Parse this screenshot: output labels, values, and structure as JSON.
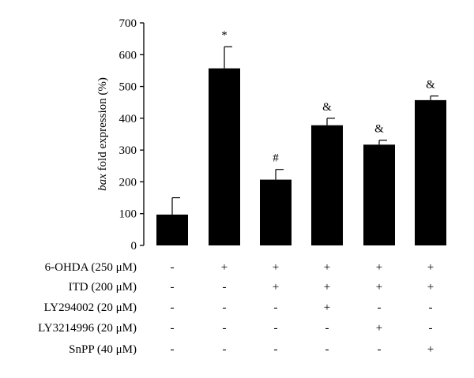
{
  "chart_data": {
    "type": "bar",
    "ylabel_italic": "bax",
    "ylabel_rest": " fold expression (%)",
    "ylim": [
      0,
      700
    ],
    "yticks": [
      0,
      100,
      200,
      300,
      400,
      500,
      600,
      700
    ],
    "values": [
      97,
      557,
      207,
      378,
      317,
      457
    ],
    "errors": [
      53,
      68,
      32,
      22,
      14,
      13
    ],
    "annotations": [
      "",
      "*",
      "#",
      "&",
      "&",
      "&"
    ],
    "bar_color": "#000000",
    "treatment_rows": [
      {
        "label": "6-OHDA (250 μM)",
        "values": [
          "-",
          "+",
          "+",
          "+",
          "+",
          "+"
        ]
      },
      {
        "label": "ITD (200 μM)",
        "values": [
          "-",
          "-",
          "+",
          "+",
          "+",
          "+"
        ]
      },
      {
        "label": "LY294002 (20 μM)",
        "values": [
          "-",
          "-",
          "-",
          "+",
          "-",
          "-"
        ]
      },
      {
        "label": "LY3214996 (20 μM)",
        "values": [
          "-",
          "-",
          "-",
          "-",
          "+",
          "-"
        ]
      },
      {
        "label": "SnPP (40 μM)",
        "values": [
          "-",
          "-",
          "-",
          "-",
          "-",
          "+"
        ]
      }
    ]
  }
}
